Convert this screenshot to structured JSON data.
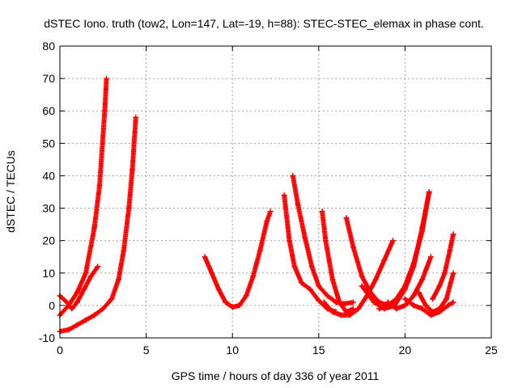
{
  "chart_data": {
    "type": "scatter",
    "title": "dSTEC Iono. truth (tow2, Lon=147, Lat=-19, h=88): STEC-STEC_elemax in phase cont.",
    "xlabel": "GPS time / hours of day 336 of year 2011",
    "ylabel": "dSTEC  / TECUs",
    "xlim": [
      0,
      25
    ],
    "ylim": [
      -10,
      80
    ],
    "xticks": [
      0,
      5,
      10,
      15,
      20,
      25
    ],
    "yticks": [
      -10,
      0,
      10,
      20,
      30,
      40,
      50,
      60,
      70,
      80
    ],
    "grid": true,
    "marker": "plus",
    "color": "#ff0000",
    "series": [
      {
        "x": [
          0.0,
          0.5,
          1.0,
          1.5,
          2.0,
          2.3,
          2.6,
          2.7
        ],
        "y": [
          -3,
          0,
          4,
          10,
          24,
          37,
          60,
          70
        ]
      },
      {
        "x": [
          0.0,
          0.4,
          0.7,
          1.0,
          1.4,
          1.8,
          2.2
        ],
        "y": [
          3,
          1,
          -1,
          1,
          5,
          9,
          12
        ]
      },
      {
        "x": [
          0.0,
          0.5,
          1.0,
          1.5,
          2.0,
          2.5,
          3.0,
          3.4,
          3.7,
          4.0,
          4.2,
          4.4
        ],
        "y": [
          -8,
          -7.5,
          -6,
          -4.5,
          -3,
          -1,
          2,
          8,
          17,
          30,
          42,
          58
        ]
      },
      {
        "x": [
          8.4,
          8.8,
          9.2,
          9.6,
          10.0,
          10.4,
          10.8,
          11.2,
          11.6,
          12.0,
          12.2
        ],
        "y": [
          15,
          10,
          5,
          1,
          -0.5,
          0,
          3,
          9,
          17,
          26,
          29
        ]
      },
      {
        "x": [
          13.0,
          13.3,
          13.6,
          14.0,
          14.5,
          15.0,
          15.5,
          16.0
        ],
        "y": [
          34,
          20,
          12,
          7,
          5,
          1.5,
          -1,
          -2
        ]
      },
      {
        "x": [
          13.5,
          13.8,
          14.2,
          14.6,
          15.0,
          15.5,
          16.0,
          16.5,
          17.0
        ],
        "y": [
          40,
          31,
          21,
          12,
          6,
          3,
          1,
          0.5,
          1
        ]
      },
      {
        "x": [
          15.2,
          15.4,
          15.8,
          16.2,
          16.6,
          17.0
        ],
        "y": [
          29,
          20,
          8,
          1,
          -2,
          -1
        ]
      },
      {
        "x": [
          16.6,
          17.0,
          17.5,
          18.0,
          18.5,
          19.0
        ],
        "y": [
          27,
          18,
          9,
          4,
          1,
          0
        ]
      },
      {
        "x": [
          15.3,
          15.8,
          16.3,
          16.8,
          17.3,
          17.8,
          18.3,
          18.8,
          19.3
        ],
        "y": [
          1,
          -2,
          -3,
          -3,
          -1,
          3,
          8,
          14,
          20
        ]
      },
      {
        "x": [
          17.5,
          18.2,
          18.8,
          19.4,
          20.0,
          20.5,
          21.0,
          21.4
        ],
        "y": [
          6,
          1,
          -1,
          0,
          5,
          12,
          24,
          35
        ]
      },
      {
        "x": [
          18.5,
          19.0,
          19.5,
          20.0,
          20.5,
          21.0,
          21.4
        ],
        "y": [
          -1,
          0,
          2,
          6,
          13,
          23,
          35
        ]
      },
      {
        "x": [
          19.0,
          19.5,
          20.0,
          20.5,
          21.0,
          21.5
        ],
        "y": [
          1,
          -1,
          0,
          3,
          8,
          15
        ]
      },
      {
        "x": [
          20.0,
          20.5,
          21.0,
          21.5,
          22.0,
          22.5,
          22.8
        ],
        "y": [
          2,
          0,
          -1,
          -3,
          -2,
          0,
          1
        ]
      },
      {
        "x": [
          20.8,
          21.2,
          21.6,
          22.0,
          22.4,
          22.8
        ],
        "y": [
          4,
          0,
          -2,
          -1,
          2,
          10
        ]
      },
      {
        "x": [
          21.6,
          22.0,
          22.3,
          22.6,
          22.8
        ],
        "y": [
          2,
          6,
          10,
          17,
          22
        ]
      }
    ]
  }
}
